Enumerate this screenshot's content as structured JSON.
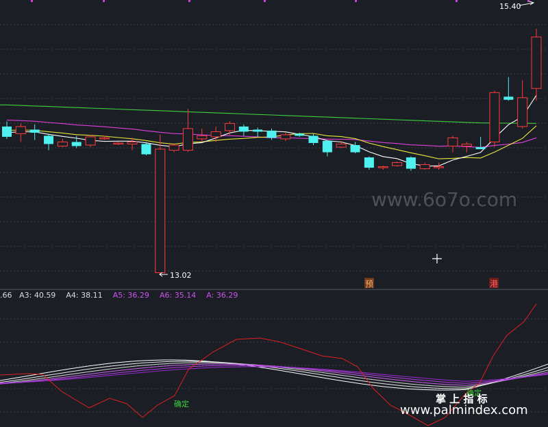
{
  "chart_data": [
    {
      "type": "candlestick",
      "title": "",
      "annotations": {
        "high_label": "15.40",
        "low_label": "13.02",
        "marker_1": "预",
        "marker_2": "港",
        "watermark": "www.6o7o.com"
      },
      "candles": [
        {
          "o": 14.45,
          "h": 14.5,
          "l": 14.33,
          "c": 14.35
        },
        {
          "o": 14.38,
          "h": 14.48,
          "l": 14.3,
          "c": 14.45
        },
        {
          "o": 14.42,
          "h": 14.47,
          "l": 14.32,
          "c": 14.39
        },
        {
          "o": 14.36,
          "h": 14.38,
          "l": 14.22,
          "c": 14.28
        },
        {
          "o": 14.26,
          "h": 14.33,
          "l": 14.25,
          "c": 14.3
        },
        {
          "o": 14.3,
          "h": 14.36,
          "l": 14.24,
          "c": 14.26
        },
        {
          "o": 14.27,
          "h": 14.37,
          "l": 14.25,
          "c": 14.35
        },
        {
          "o": 14.33,
          "h": 14.36,
          "l": 14.32,
          "c": 14.34
        },
        {
          "o": 14.28,
          "h": 14.3,
          "l": 14.27,
          "c": 14.29
        },
        {
          "o": 14.28,
          "h": 14.34,
          "l": 14.22,
          "c": 14.3
        },
        {
          "o": 14.28,
          "h": 14.3,
          "l": 14.17,
          "c": 14.18
        },
        {
          "o": 13.03,
          "h": 14.37,
          "l": 13.02,
          "c": 14.23
        },
        {
          "o": 14.22,
          "h": 14.28,
          "l": 14.2,
          "c": 14.27
        },
        {
          "o": 14.22,
          "h": 14.62,
          "l": 14.2,
          "c": 14.43
        },
        {
          "o": 14.33,
          "h": 14.43,
          "l": 14.3,
          "c": 14.36
        },
        {
          "o": 14.35,
          "h": 14.45,
          "l": 14.3,
          "c": 14.4
        },
        {
          "o": 14.41,
          "h": 14.5,
          "l": 14.37,
          "c": 14.48
        },
        {
          "o": 14.45,
          "h": 14.47,
          "l": 14.36,
          "c": 14.4
        },
        {
          "o": 14.42,
          "h": 14.44,
          "l": 14.35,
          "c": 14.4
        },
        {
          "o": 14.41,
          "h": 14.43,
          "l": 14.32,
          "c": 14.34
        },
        {
          "o": 14.33,
          "h": 14.39,
          "l": 14.31,
          "c": 14.37
        },
        {
          "o": 14.38,
          "h": 14.39,
          "l": 14.35,
          "c": 14.36
        },
        {
          "o": 14.36,
          "h": 14.38,
          "l": 14.27,
          "c": 14.29
        },
        {
          "o": 14.31,
          "h": 14.32,
          "l": 14.16,
          "c": 14.2
        },
        {
          "o": 14.25,
          "h": 14.31,
          "l": 14.24,
          "c": 14.28
        },
        {
          "o": 14.27,
          "h": 14.3,
          "l": 14.19,
          "c": 14.2
        },
        {
          "o": 14.15,
          "h": 14.16,
          "l": 14.03,
          "c": 14.05
        },
        {
          "o": 14.06,
          "h": 14.07,
          "l": 14.03,
          "c": 14.06
        },
        {
          "o": 14.07,
          "h": 14.11,
          "l": 14.06,
          "c": 14.1
        },
        {
          "o": 14.15,
          "h": 14.16,
          "l": 14.02,
          "c": 14.04
        },
        {
          "o": 14.04,
          "h": 14.1,
          "l": 14.03,
          "c": 14.08
        },
        {
          "o": 14.06,
          "h": 14.1,
          "l": 14.03,
          "c": 14.06
        },
        {
          "o": 14.26,
          "h": 14.36,
          "l": 14.2,
          "c": 14.34
        },
        {
          "o": 14.26,
          "h": 14.3,
          "l": 14.2,
          "c": 14.28
        },
        {
          "o": 14.25,
          "h": 14.35,
          "l": 14.23,
          "c": 14.23
        },
        {
          "o": 14.3,
          "h": 14.8,
          "l": 14.25,
          "c": 14.78
        },
        {
          "o": 14.74,
          "h": 14.93,
          "l": 14.7,
          "c": 14.71
        },
        {
          "o": 14.45,
          "h": 14.9,
          "l": 14.43,
          "c": 14.73
        },
        {
          "o": 14.82,
          "h": 15.4,
          "l": 14.7,
          "c": 15.32
        }
      ]
    },
    {
      "type": "line",
      "legend": [
        {
          "label": ".66",
          "color": "#dddddd"
        },
        {
          "label": "A3: 40.59",
          "color": "#dddddd"
        },
        {
          "label": "A4: 38.11",
          "color": "#dddddd"
        },
        {
          "label": "A5: 36.29",
          "color": "#cc55ee"
        },
        {
          "label": "A6: 35.14",
          "color": "#cc55ee"
        },
        {
          "label": "A: 36.29",
          "color": "#cc55ee"
        }
      ],
      "annotations": {
        "signal_1": "确定",
        "signal_2": "确定",
        "brand": "掌 上 指 标",
        "watermark": "www.palmindex.com"
      },
      "colors": {
        "up": "#ff3b3b",
        "down": "#4ff0f0",
        "ma5": "#ffffff",
        "ma10": "#e8e83a",
        "ma20": "#e040e0",
        "ma60": "#3ed03e",
        "oscillator": "#e02020"
      }
    }
  ]
}
